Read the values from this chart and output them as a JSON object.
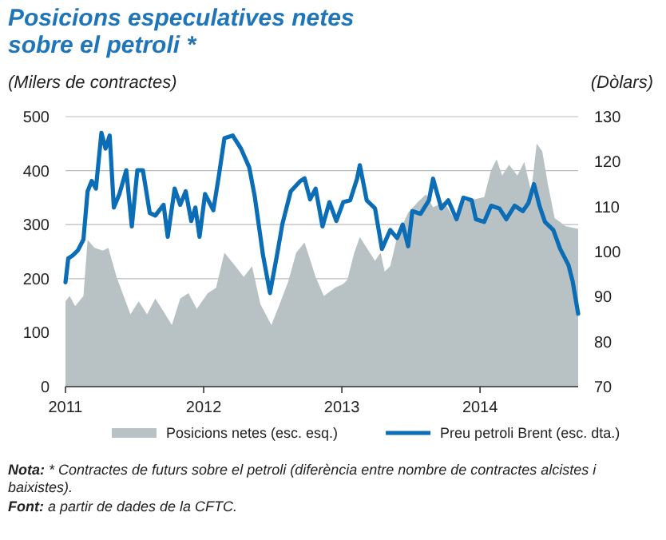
{
  "chart_data": {
    "type": "area",
    "title": "Posicions especulatives netes sobre el petroli *",
    "ylabel": "(Milers de contractes)",
    "y2label": "(Dòlars)",
    "xlim": [
      2011,
      2014.71
    ],
    "xticks": [
      2011,
      2012,
      2013,
      2014
    ],
    "ylim": [
      0,
      500
    ],
    "yticks": [
      0,
      100,
      200,
      300,
      400,
      500
    ],
    "y2lim": [
      70,
      130
    ],
    "y2ticks": [
      70,
      80,
      90,
      100,
      110,
      120,
      130
    ],
    "grid": "y",
    "legend": "bottom",
    "series": [
      {
        "name": "Posicions netes (esc. esq.)",
        "color": "#b8c1c3",
        "x": [
          2011.0,
          2011.03,
          2011.07,
          2011.13,
          2011.16,
          2011.21,
          2011.27,
          2011.31,
          2011.37,
          2011.47,
          2011.53,
          2011.59,
          2011.65,
          2011.71,
          2011.77,
          2011.83,
          2011.89,
          2011.95,
          2012.03,
          2012.09,
          2012.15,
          2012.23,
          2012.29,
          2012.35,
          2012.41,
          2012.49,
          2012.55,
          2012.61,
          2012.67,
          2012.73,
          2012.81,
          2012.87,
          2012.95,
          2013.01,
          2013.04,
          2013.09,
          2013.13,
          2013.18,
          2013.24,
          2013.28,
          2013.31,
          2013.35,
          2013.4,
          2013.48,
          2013.55,
          2013.61,
          2013.66,
          2013.74,
          2013.81,
          2013.88,
          2013.96,
          2014.03,
          2014.08,
          2014.12,
          2014.16,
          2014.21,
          2014.27,
          2014.32,
          2014.37,
          2014.41,
          2014.45,
          2014.49,
          2014.54,
          2014.62,
          2014.71
        ],
        "values": [
          158,
          168,
          149,
          168,
          272,
          257,
          252,
          257,
          203,
          134,
          158,
          134,
          163,
          139,
          114,
          163,
          173,
          144,
          173,
          183,
          248,
          223,
          203,
          223,
          153,
          114,
          153,
          193,
          248,
          267,
          203,
          168,
          183,
          190,
          198,
          248,
          277,
          257,
          233,
          248,
          213,
          223,
          277,
          322,
          342,
          356,
          332,
          342,
          312,
          342,
          347,
          351,
          401,
          421,
          391,
          411,
          391,
          416,
          361,
          450,
          436,
          376,
          312,
          297,
          292
        ]
      },
      {
        "name": "Preu petroli Brent (esc. dta.)",
        "type": "line",
        "axis": "y2",
        "color": "#0a6db5",
        "x": [
          2011.0,
          2011.02,
          2011.05,
          2011.09,
          2011.13,
          2011.16,
          2011.19,
          2011.22,
          2011.26,
          2011.29,
          2011.32,
          2011.35,
          2011.39,
          2011.44,
          2011.48,
          2011.52,
          2011.56,
          2011.61,
          2011.65,
          2011.71,
          2011.74,
          2011.79,
          2011.83,
          2011.87,
          2011.91,
          2011.94,
          2011.97,
          2012.01,
          2012.07,
          2012.11,
          2012.15,
          2012.21,
          2012.27,
          2012.33,
          2012.37,
          2012.43,
          2012.48,
          2012.53,
          2012.57,
          2012.63,
          2012.7,
          2012.73,
          2012.77,
          2012.81,
          2012.86,
          2012.91,
          2012.96,
          2013.01,
          2013.06,
          2013.11,
          2013.13,
          2013.18,
          2013.24,
          2013.29,
          2013.35,
          2013.4,
          2013.44,
          2013.48,
          2013.51,
          2013.57,
          2013.63,
          2013.66,
          2013.72,
          2013.77,
          2013.83,
          2013.88,
          2013.94,
          2013.97,
          2014.03,
          2014.08,
          2014.14,
          2014.19,
          2014.25,
          2014.31,
          2014.35,
          2014.39,
          2014.43,
          2014.47,
          2014.53,
          2014.58,
          2014.64,
          2014.67,
          2014.71
        ],
        "values": [
          93.2,
          98.5,
          99.1,
          100.3,
          102.7,
          113.4,
          115.7,
          114.0,
          126.4,
          122.9,
          125.8,
          109.8,
          112.8,
          118.1,
          105.6,
          118.1,
          118.1,
          108.6,
          108.0,
          110.4,
          103.3,
          114.0,
          110.4,
          113.4,
          106.8,
          109.8,
          103.3,
          112.8,
          109.2,
          116.9,
          125.2,
          125.8,
          122.9,
          118.7,
          112.2,
          99.1,
          90.8,
          99.1,
          106.2,
          113.4,
          115.7,
          116.3,
          111.6,
          114.0,
          105.6,
          111.0,
          106.8,
          111.0,
          111.4,
          116.2,
          119.2,
          111.4,
          109.6,
          100.6,
          104.8,
          103.0,
          106.0,
          101.2,
          109.0,
          108.4,
          111.4,
          116.2,
          109.6,
          111.4,
          107.2,
          112.0,
          111.4,
          107.2,
          106.6,
          110.2,
          109.6,
          107.2,
          110.2,
          109.0,
          110.8,
          115.0,
          110.2,
          106.6,
          104.8,
          100.6,
          97.0,
          93.4,
          86.2
        ]
      }
    ],
    "annotations": [
      "Nota: * Contractes de futurs sobre el petroli (diferència entre nombre de contractes alcistes i baixistes).",
      "Font: a partir de dades de la CFTC."
    ]
  }
}
